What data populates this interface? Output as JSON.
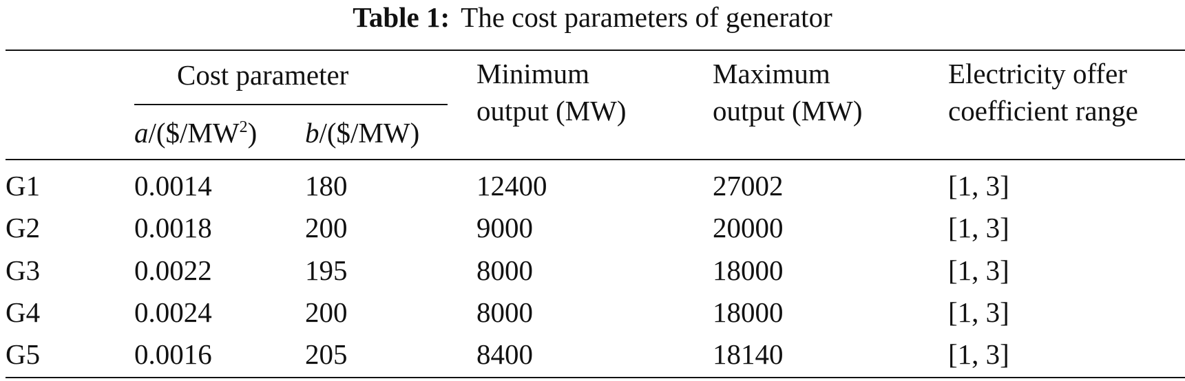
{
  "caption": {
    "label": "Table 1:",
    "text": "The cost parameters of generator"
  },
  "header": {
    "cost_parameter": "Cost parameter",
    "a_symbol": "a",
    "a_unit_pre": "/($/MW",
    "a_unit_sup": "2",
    "a_unit_post": ")",
    "b_symbol": "b",
    "b_unit": "/($/MW)",
    "min_output_line1": "Minimum",
    "min_output_line2": "output (MW)",
    "max_output_line1": "Maximum",
    "max_output_line2": "output (MW)",
    "offer_line1": "Electricity offer",
    "offer_line2": "coefficient range"
  },
  "rows": [
    {
      "gen": "G1",
      "a": "0.0014",
      "b": "180",
      "min": "12400",
      "max": "27002",
      "range": "[1, 3]"
    },
    {
      "gen": "G2",
      "a": "0.0018",
      "b": "200",
      "min": "9000",
      "max": "20000",
      "range": "[1, 3]"
    },
    {
      "gen": "G3",
      "a": "0.0022",
      "b": "195",
      "min": "8000",
      "max": "18000",
      "range": "[1, 3]"
    },
    {
      "gen": "G4",
      "a": "0.0024",
      "b": "200",
      "min": "8000",
      "max": "18000",
      "range": "[1, 3]"
    },
    {
      "gen": "G5",
      "a": "0.0016",
      "b": "205",
      "min": "8400",
      "max": "18140",
      "range": "[1, 3]"
    }
  ]
}
